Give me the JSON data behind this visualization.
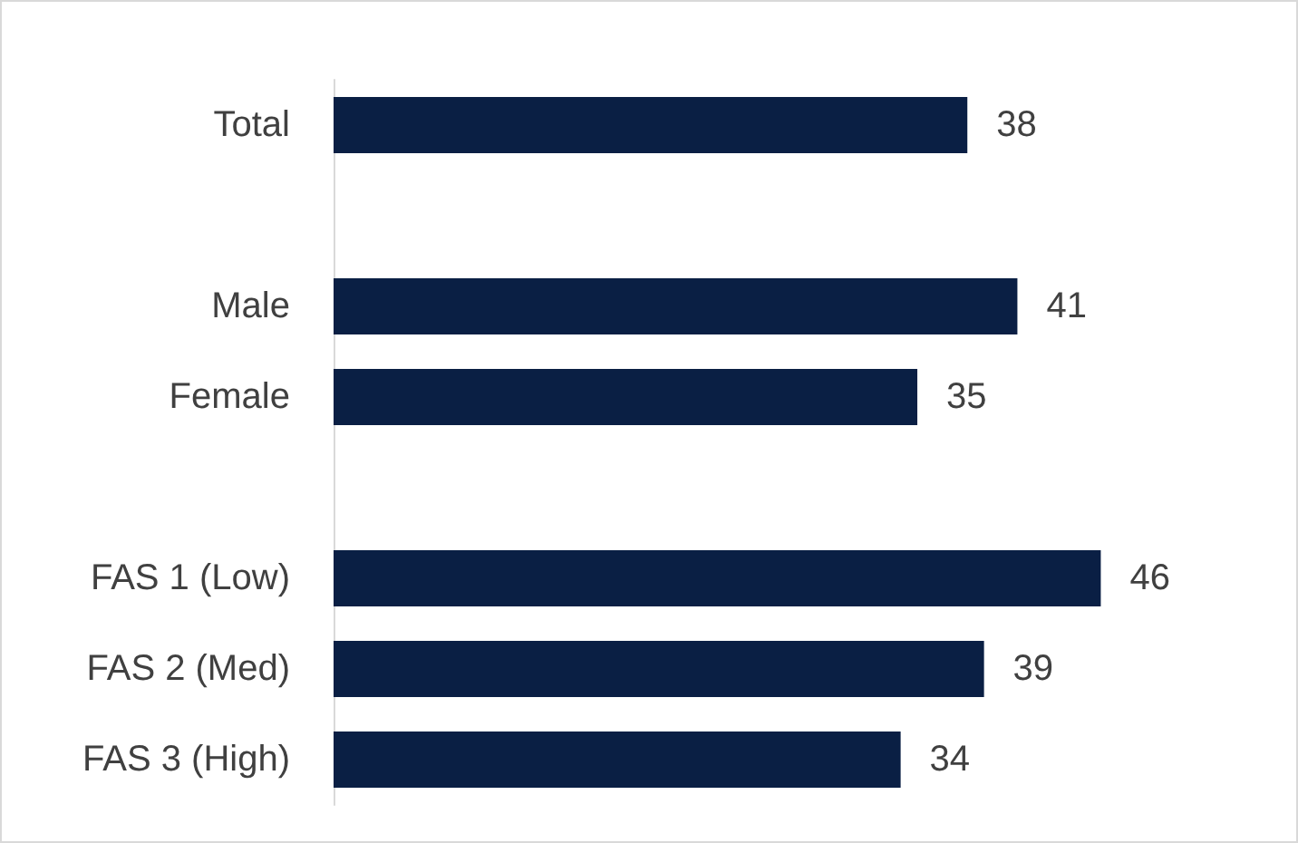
{
  "chart_data": {
    "type": "bar",
    "orientation": "horizontal",
    "categories": [
      "Total",
      null,
      "Male",
      "Female",
      null,
      "FAS 1 (Low)",
      "FAS 2 (Med)",
      "FAS 3 (High)"
    ],
    "values": [
      38,
      null,
      41,
      35,
      null,
      46,
      39,
      34
    ],
    "color": "#0a1f44",
    "data_labels": true
  }
}
